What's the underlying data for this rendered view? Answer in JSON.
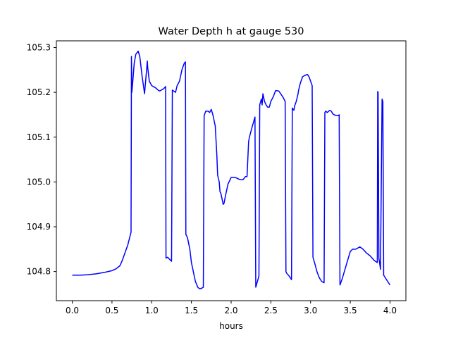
{
  "chart_data": {
    "type": "line",
    "title": "Water Depth h at gauge 530",
    "xlabel": "hours",
    "ylabel": "",
    "xlim": [
      -0.2,
      4.2
    ],
    "ylim": [
      104.735,
      105.315
    ],
    "xticks": [
      0.0,
      0.5,
      1.0,
      1.5,
      2.0,
      2.5,
      3.0,
      3.5,
      4.0
    ],
    "xtick_labels": [
      "0.0",
      "0.5",
      "1.0",
      "1.5",
      "2.0",
      "2.5",
      "3.0",
      "3.5",
      "4.0"
    ],
    "yticks": [
      104.8,
      104.9,
      105.0,
      105.1,
      105.2,
      105.3
    ],
    "ytick_labels": [
      "104.8",
      "104.9",
      "105.0",
      "105.1",
      "105.2",
      "105.3"
    ],
    "grid": false,
    "series": [
      {
        "color": "#0000ff",
        "x": [
          0.0,
          0.1,
          0.2,
          0.3,
          0.4,
          0.5,
          0.55,
          0.6,
          0.63,
          0.66,
          0.7,
          0.74,
          0.745,
          0.75,
          0.76,
          0.78,
          0.8,
          0.83,
          0.85,
          0.88,
          0.91,
          0.945,
          0.95,
          0.97,
          1.0,
          1.05,
          1.08,
          1.1,
          1.15,
          1.175,
          1.18,
          1.2,
          1.25,
          1.26,
          1.3,
          1.32,
          1.35,
          1.38,
          1.41,
          1.425,
          1.43,
          1.45,
          1.48,
          1.5,
          1.55,
          1.58,
          1.6,
          1.62,
          1.65,
          1.66,
          1.68,
          1.71,
          1.73,
          1.75,
          1.77,
          1.8,
          1.82,
          1.83,
          1.85,
          1.86,
          1.87,
          1.9,
          1.91,
          1.93,
          1.96,
          2.0,
          2.03,
          2.05,
          2.08,
          2.1,
          2.12,
          2.15,
          2.18,
          2.2,
          2.22,
          2.23,
          2.26,
          2.3,
          2.31,
          2.35,
          2.36,
          2.38,
          2.39,
          2.4,
          2.42,
          2.44,
          2.46,
          2.48,
          2.5,
          2.53,
          2.56,
          2.6,
          2.65,
          2.68,
          2.69,
          2.7,
          2.73,
          2.76,
          2.77,
          2.79,
          2.8,
          2.82,
          2.84,
          2.85,
          2.87,
          2.9,
          2.93,
          2.96,
          2.98,
          3.0,
          3.02,
          3.03,
          3.05,
          3.08,
          3.11,
          3.14,
          3.17,
          3.18,
          3.19,
          3.21,
          3.24,
          3.26,
          3.28,
          3.32,
          3.35,
          3.36,
          3.37,
          3.4,
          3.45,
          3.5,
          3.53,
          3.57,
          3.62,
          3.66,
          3.7,
          3.75,
          3.8,
          3.84,
          3.845,
          3.85,
          3.86,
          3.87,
          3.88,
          3.9,
          3.91,
          3.92,
          3.97,
          4.0
        ],
        "y": [
          104.792,
          104.792,
          104.793,
          104.795,
          104.798,
          104.802,
          104.806,
          104.813,
          104.825,
          104.84,
          104.86,
          104.888,
          105.28,
          105.2,
          105.22,
          105.265,
          105.285,
          105.292,
          105.28,
          105.235,
          105.197,
          105.27,
          105.255,
          105.225,
          105.215,
          105.21,
          105.205,
          105.203,
          105.208,
          105.213,
          104.83,
          104.832,
          104.823,
          105.205,
          105.2,
          105.215,
          105.225,
          105.25,
          105.265,
          105.268,
          104.883,
          104.876,
          104.85,
          104.82,
          104.778,
          104.765,
          104.762,
          104.762,
          104.765,
          105.148,
          105.158,
          105.158,
          105.155,
          105.162,
          105.15,
          105.125,
          105.06,
          105.015,
          105.0,
          104.978,
          104.975,
          104.95,
          104.952,
          104.97,
          104.995,
          105.01,
          105.01,
          105.01,
          105.008,
          105.006,
          105.005,
          105.005,
          105.012,
          105.012,
          105.09,
          105.1,
          105.12,
          105.145,
          104.765,
          104.79,
          105.172,
          105.185,
          105.172,
          105.197,
          105.18,
          105.172,
          105.167,
          105.167,
          105.18,
          105.19,
          105.204,
          105.203,
          105.19,
          105.18,
          104.8,
          104.796,
          104.79,
          104.782,
          105.165,
          105.16,
          105.17,
          105.18,
          105.195,
          105.205,
          105.22,
          105.235,
          105.238,
          105.24,
          105.235,
          105.225,
          105.215,
          104.832,
          104.82,
          104.8,
          104.786,
          104.778,
          104.775,
          105.155,
          105.158,
          105.155,
          105.16,
          105.158,
          105.152,
          105.148,
          105.148,
          105.15,
          104.77,
          104.785,
          104.815,
          104.845,
          104.85,
          104.85,
          104.855,
          104.85,
          104.842,
          104.835,
          104.825,
          104.82,
          105.202,
          105.2,
          104.83,
          104.818,
          104.805,
          105.185,
          105.18,
          104.792,
          104.778,
          104.77
        ]
      }
    ]
  }
}
